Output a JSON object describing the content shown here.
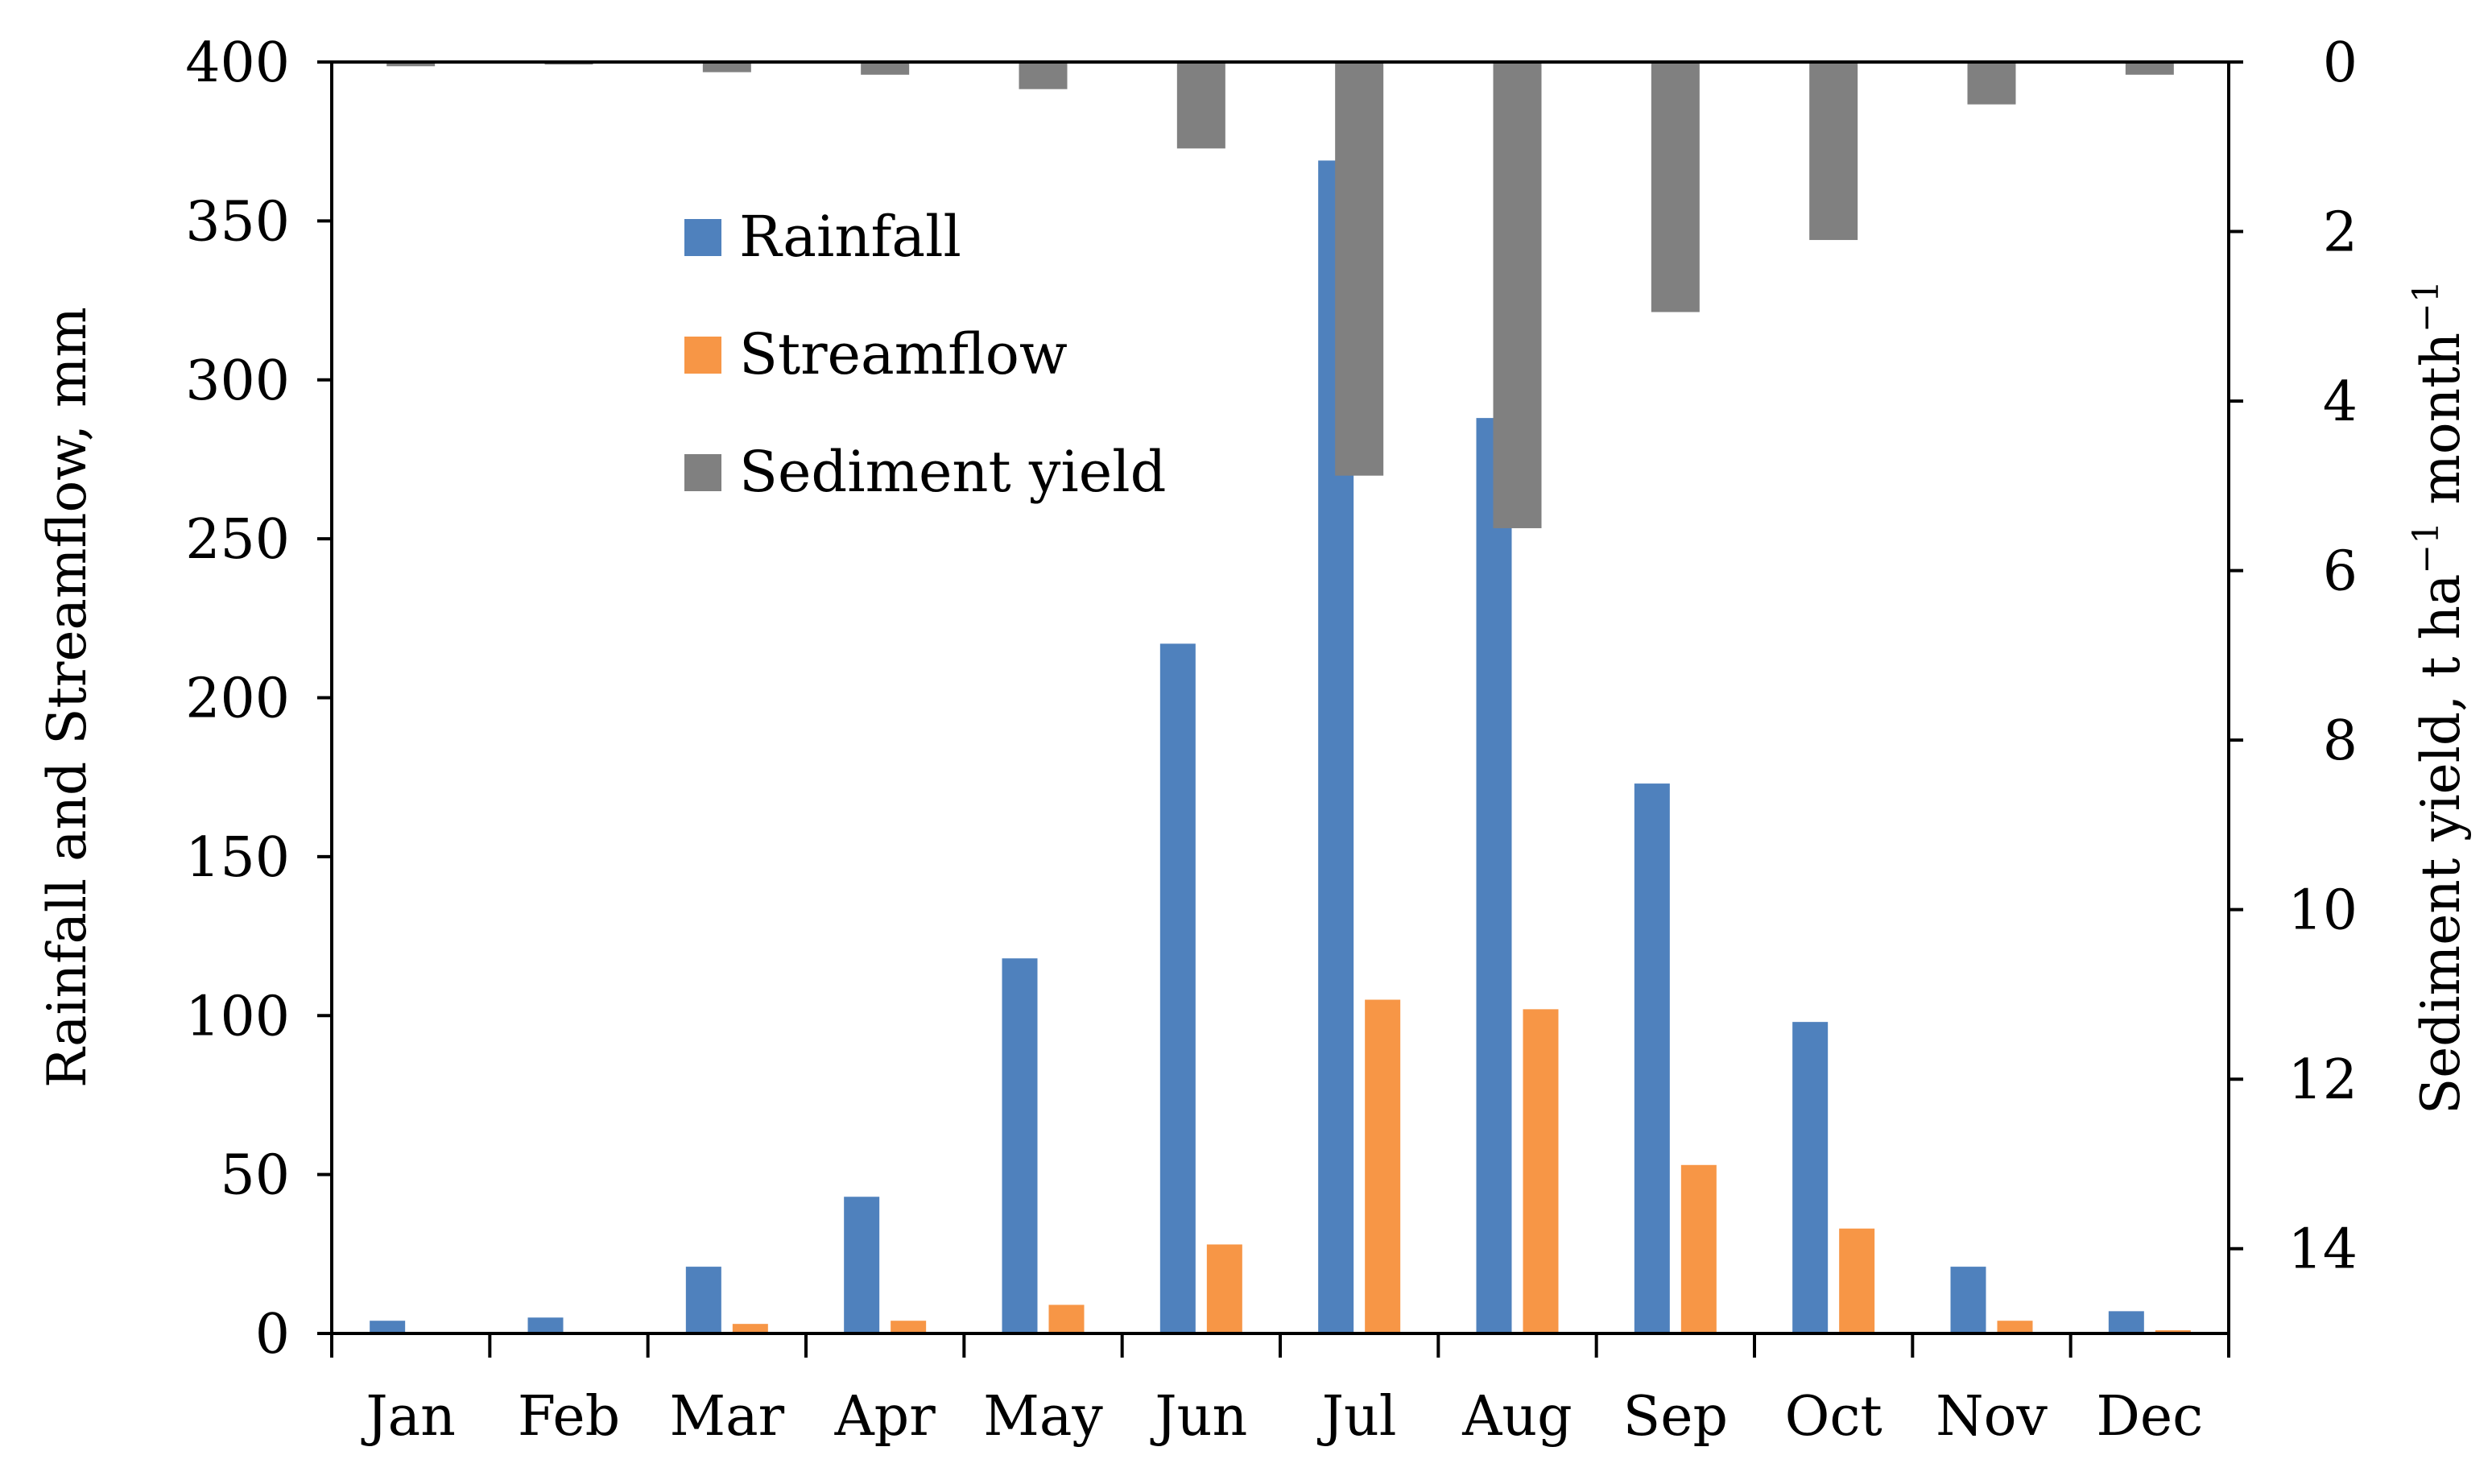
{
  "chart_data": {
    "type": "bar",
    "categories": [
      "Jan",
      "Feb",
      "Mar",
      "Apr",
      "May",
      "Jun",
      "Jul",
      "Aug",
      "Sep",
      "Oct",
      "Nov",
      "Dec"
    ],
    "series": [
      {
        "name": "Rainfall",
        "axis": "left",
        "color": "#4F81BD",
        "values": [
          4,
          5,
          21,
          43,
          118,
          217,
          369,
          288,
          173,
          98,
          21,
          7
        ]
      },
      {
        "name": "Streamflow",
        "axis": "left",
        "color": "#F79646",
        "values": [
          0.3,
          0.5,
          3,
          4,
          9,
          28,
          105,
          102,
          53,
          33,
          4,
          1
        ]
      },
      {
        "name": "Sediment yield",
        "axis": "right",
        "color": "#808080",
        "values": [
          0.05,
          0.03,
          0.12,
          0.15,
          0.32,
          1.02,
          4.88,
          5.5,
          2.95,
          2.1,
          0.5,
          0.15
        ]
      }
    ],
    "left_axis": {
      "label": "Rainfall and Streamflow, mm",
      "ylim": [
        0,
        400
      ],
      "ticks": [
        0,
        50,
        100,
        150,
        200,
        250,
        300,
        350,
        400
      ]
    },
    "right_axis": {
      "label_parts": [
        "Sediment yield, t ha",
        "−1",
        " month",
        "−1"
      ],
      "ylim": [
        0,
        15
      ],
      "inverted": true,
      "ticks": [
        0,
        2,
        4,
        6,
        8,
        10,
        12,
        14
      ]
    },
    "legend": {
      "placement": "top-left-inside",
      "entries": [
        "Rainfall",
        "Streamflow",
        "Sediment yield"
      ]
    },
    "grid": false
  }
}
